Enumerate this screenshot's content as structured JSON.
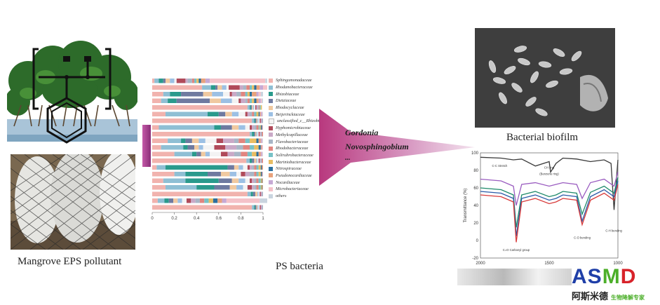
{
  "captions": {
    "pollutant": "Mangrove EPS pollutant",
    "bacteria": "PS bacteria",
    "biofilm": "Bacterial biofilm"
  },
  "arrow": {
    "line1": "Gordonia",
    "line2": "Novosphingobium",
    "line3": "..."
  },
  "logo": {
    "main": "ASMD",
    "cn_name": "阿斯米德",
    "cn_tagline": "生物降解专家",
    "colors": {
      "blue": "#1f3fa8",
      "green": "#4caf2a",
      "red": "#d8232a"
    }
  },
  "chart_data": [
    {
      "type": "bar",
      "orientation": "horizontal-stacked",
      "xlim": [
        0,
        1
      ],
      "x_ticks": [
        "0",
        "0.2",
        "0.4",
        "0.6",
        "0.8",
        "1"
      ],
      "series": [
        {
          "name": "Sphingomonadaceae",
          "color": "#f1b3ae"
        },
        {
          "name": "Rhodanobacteraceae",
          "color": "#8fbfd4"
        },
        {
          "name": "Rhizobiaceae",
          "color": "#2a9a8c"
        },
        {
          "name": "Dietziaceae",
          "color": "#6f7aa0"
        },
        {
          "name": "Rhodocyclaceae",
          "color": "#f0c9a0"
        },
        {
          "name": "Beijerinckiaceae",
          "color": "#9cc0e4"
        },
        {
          "name": "unclassified_c__Rhizobiales",
          "color": "#f3f3f3"
        },
        {
          "name": "Hyphomicrobiaceae",
          "color": "#b04a5a"
        },
        {
          "name": "Methylcapillaceae",
          "color": "#c9a9c7"
        },
        {
          "name": "Flavobacteriaceae",
          "color": "#a8b6c6"
        },
        {
          "name": "Rhodobacteraceae",
          "color": "#e1857f"
        },
        {
          "name": "Solirubrobacteraceae",
          "color": "#77c1c6"
        },
        {
          "name": "Mariniobacteraceae",
          "color": "#e8bd63"
        },
        {
          "name": "Nitrospiraceae",
          "color": "#2b6f9e"
        },
        {
          "name": "Pseudonocardiaceae",
          "color": "#e8a27c"
        },
        {
          "name": "Nocardiaceae",
          "color": "#c6a9d4"
        },
        {
          "name": "Microbacteriaceae",
          "color": "#f4c2c9"
        },
        {
          "name": "others",
          "color": "#c9d4df"
        }
      ],
      "rows": [
        [
          0.02,
          0.04,
          0.04,
          0.02,
          0.04,
          0.04,
          0.02,
          0.08,
          0.02,
          0.04,
          0.02,
          0.02,
          0.02,
          0.02,
          0.04,
          0.04,
          0.5,
          0.08
        ],
        [
          0.45,
          0.08,
          0.04,
          0.02,
          0.04,
          0.04,
          0.02,
          0.1,
          0.03,
          0.03,
          0.03,
          0.02,
          0.02,
          0.02,
          0.03,
          0.03,
          0.04,
          0.06
        ],
        [
          0.1,
          0.06,
          0.1,
          0.2,
          0.08,
          0.1,
          0.06,
          0.02,
          0.04,
          0.04,
          0.04,
          0.02,
          0.02,
          0.02,
          0.04,
          0.02,
          0.02,
          0.02
        ],
        [
          0.08,
          0.06,
          0.08,
          0.3,
          0.1,
          0.1,
          0.06,
          0.02,
          0.04,
          0.02,
          0.02,
          0.02,
          0.02,
          0.02,
          0.02,
          0.02,
          0.01,
          0.01
        ],
        [
          0.86,
          0.02,
          0.01,
          0.01,
          0.01,
          0.01,
          0.01,
          0.01,
          0.01,
          0.01,
          0.01,
          0.01,
          0.01,
          0.0,
          0.0,
          0.0,
          0.0,
          0.0
        ],
        [
          0.12,
          0.38,
          0.1,
          0.06,
          0.06,
          0.06,
          0.06,
          0.02,
          0.02,
          0.02,
          0.02,
          0.02,
          0.02,
          0.01,
          0.01,
          0.01,
          0.005,
          0.005
        ],
        [
          0.9,
          0.02,
          0.01,
          0.01,
          0.01,
          0.01,
          0.01,
          0.01,
          0.01,
          0.01,
          0.0,
          0.0,
          0.0,
          0.0,
          0.0,
          0.0,
          0.0,
          0.0
        ],
        [
          0.06,
          0.5,
          0.06,
          0.1,
          0.06,
          0.06,
          0.04,
          0.02,
          0.02,
          0.02,
          0.02,
          0.01,
          0.01,
          0.01,
          0.005,
          0.005,
          0.0,
          0.0
        ],
        [
          0.88,
          0.02,
          0.02,
          0.01,
          0.01,
          0.01,
          0.01,
          0.01,
          0.01,
          0.01,
          0.01,
          0.0,
          0.0,
          0.0,
          0.0,
          0.0,
          0.0,
          0.0
        ],
        [
          0.14,
          0.12,
          0.04,
          0.06,
          0.06,
          0.06,
          0.1,
          0.06,
          0.1,
          0.04,
          0.06,
          0.04,
          0.06,
          0.02,
          0.02,
          0.01,
          0.005,
          0.005
        ],
        [
          0.08,
          0.2,
          0.04,
          0.06,
          0.04,
          0.04,
          0.1,
          0.1,
          0.1,
          0.06,
          0.06,
          0.04,
          0.04,
          0.02,
          0.01,
          0.005,
          0.005,
          0.0
        ],
        [
          0.2,
          0.16,
          0.04,
          0.04,
          0.04,
          0.04,
          0.1,
          0.06,
          0.06,
          0.06,
          0.06,
          0.04,
          0.04,
          0.02,
          0.02,
          0.01,
          0.005,
          0.005
        ],
        [
          0.85,
          0.03,
          0.02,
          0.02,
          0.02,
          0.01,
          0.01,
          0.01,
          0.01,
          0.01,
          0.01,
          0.0,
          0.0,
          0.0,
          0.0,
          0.0,
          0.0,
          0.0
        ],
        [
          0.04,
          0.08,
          0.56,
          0.06,
          0.04,
          0.04,
          0.04,
          0.02,
          0.02,
          0.02,
          0.02,
          0.02,
          0.02,
          0.01,
          0.01,
          0.0,
          0.0,
          0.0
        ],
        [
          0.2,
          0.1,
          0.2,
          0.12,
          0.08,
          0.06,
          0.04,
          0.04,
          0.04,
          0.04,
          0.02,
          0.02,
          0.02,
          0.01,
          0.005,
          0.005,
          0.0,
          0.0
        ],
        [
          0.1,
          0.2,
          0.3,
          0.12,
          0.06,
          0.06,
          0.04,
          0.02,
          0.02,
          0.02,
          0.02,
          0.02,
          0.01,
          0.005,
          0.005,
          0.0,
          0.0,
          0.0
        ],
        [
          0.12,
          0.28,
          0.16,
          0.14,
          0.06,
          0.06,
          0.04,
          0.04,
          0.02,
          0.02,
          0.02,
          0.02,
          0.01,
          0.005,
          0.005,
          0.0,
          0.0,
          0.0
        ],
        [
          0.86,
          0.03,
          0.02,
          0.02,
          0.02,
          0.01,
          0.01,
          0.01,
          0.01,
          0.01,
          0.0,
          0.0,
          0.0,
          0.0,
          0.0,
          0.0,
          0.0,
          0.0
        ],
        [
          0.05,
          0.06,
          0.04,
          0.04,
          0.04,
          0.04,
          0.04,
          0.04,
          0.04,
          0.04,
          0.04,
          0.04,
          0.04,
          0.04,
          0.04,
          0.04,
          0.3,
          0.08
        ],
        [
          0.9,
          0.02,
          0.01,
          0.01,
          0.01,
          0.01,
          0.01,
          0.01,
          0.01,
          0.01,
          0.0,
          0.0,
          0.0,
          0.0,
          0.0,
          0.0,
          0.0,
          0.0
        ]
      ]
    },
    {
      "type": "line",
      "ylabel": "Transmittance (%)",
      "xlim": [
        2000,
        1000
      ],
      "ylim": [
        -20,
        100
      ],
      "x_ticks": [
        "2000",
        "1500",
        "1000"
      ],
      "y_ticks": [
        "100",
        "80",
        "60",
        "40",
        "20",
        "0",
        "-20"
      ],
      "annotations": [
        "C-C Stretch",
        "CH ring",
        "(Benzene ring)",
        "C=O Carbonyl group",
        "C-O bending",
        "C-H bending"
      ],
      "series": [
        {
          "color": "#3a3a3a",
          "x": [
            2000,
            1850,
            1760,
            1700,
            1600,
            1500,
            1490,
            1450,
            1400,
            1300,
            1200,
            1100,
            1050,
            1028,
            1000
          ],
          "y": [
            95,
            94,
            92,
            93,
            85,
            90,
            78,
            88,
            94,
            93,
            90,
            92,
            88,
            35,
            92
          ]
        },
        {
          "color": "#9a5cc0",
          "x": [
            2000,
            1850,
            1760,
            1740,
            1700,
            1600,
            1500,
            1450,
            1400,
            1300,
            1260,
            1200,
            1100,
            1028,
            1000
          ],
          "y": [
            70,
            68,
            62,
            40,
            64,
            66,
            62,
            64,
            66,
            64,
            48,
            66,
            70,
            62,
            78
          ]
        },
        {
          "color": "#1e8a6a",
          "x": [
            2000,
            1850,
            1760,
            1740,
            1700,
            1600,
            1500,
            1450,
            1400,
            1300,
            1260,
            1200,
            1100,
            1028,
            1000
          ],
          "y": [
            60,
            58,
            52,
            15,
            52,
            56,
            50,
            52,
            56,
            54,
            30,
            55,
            62,
            54,
            72
          ]
        },
        {
          "color": "#2a5aa8",
          "x": [
            2000,
            1850,
            1760,
            1740,
            1700,
            1600,
            1500,
            1450,
            1400,
            1300,
            1260,
            1200,
            1100,
            1028,
            1000
          ],
          "y": [
            56,
            54,
            48,
            5,
            48,
            52,
            46,
            48,
            52,
            50,
            22,
            50,
            58,
            50,
            68
          ]
        },
        {
          "color": "#d83a3a",
          "x": [
            2000,
            1850,
            1760,
            1740,
            1700,
            1600,
            1500,
            1450,
            1400,
            1300,
            1260,
            1200,
            1100,
            1028,
            1000
          ],
          "y": [
            52,
            50,
            44,
            -2,
            44,
            48,
            42,
            44,
            48,
            46,
            18,
            46,
            54,
            46,
            64
          ]
        }
      ]
    }
  ]
}
